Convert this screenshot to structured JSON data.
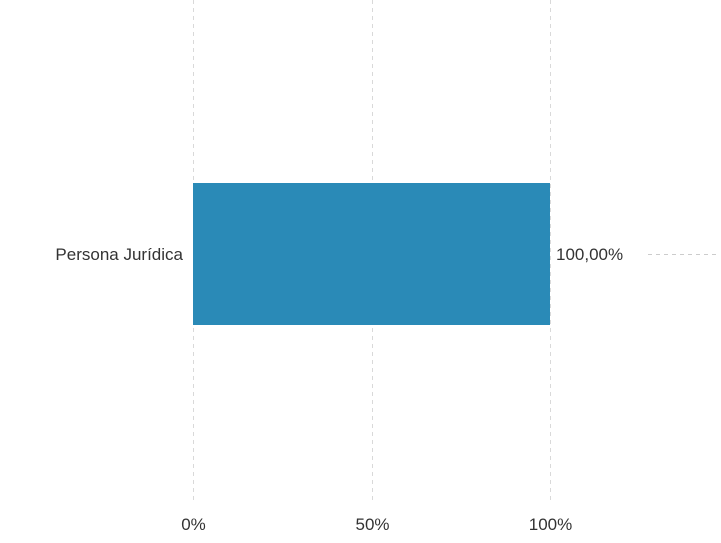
{
  "chart_data": {
    "type": "bar",
    "orientation": "horizontal",
    "categories": [
      "Persona Jurídica"
    ],
    "values": [
      100
    ],
    "value_labels": [
      "100,00%"
    ],
    "x_ticks": [
      "0%",
      "50%",
      "100%"
    ],
    "xlim": [
      0,
      100
    ],
    "grid": true,
    "colors": {
      "bar": "#2a8ab7",
      "grid": "#d9d9d9",
      "text": "#333333"
    }
  }
}
